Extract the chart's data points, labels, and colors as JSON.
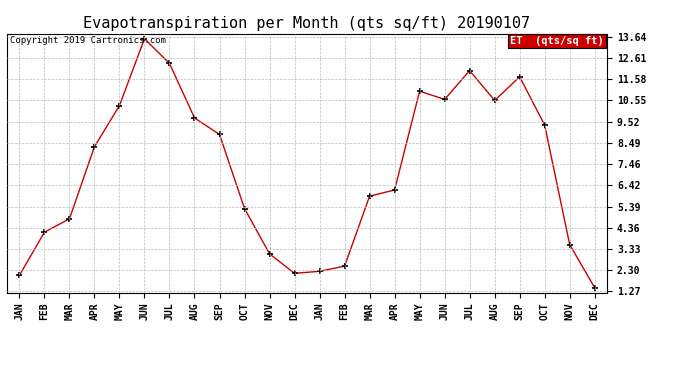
{
  "title": "Evapotranspiration per Month (qts sq/ft) 20190107",
  "copyright": "Copyright 2019 Cartronics.com",
  "legend_label": "ET  (qts/sq ft)",
  "x_labels": [
    "JAN",
    "FEB",
    "MAR",
    "APR",
    "MAY",
    "JUN",
    "JUL",
    "AUG",
    "SEP",
    "OCT",
    "NOV",
    "DEC",
    "JAN",
    "FEB",
    "MAR",
    "APR",
    "MAY",
    "JUN",
    "JUL",
    "AUG",
    "SEP",
    "OCT",
    "NOV",
    "DEC"
  ],
  "y_values": [
    2.05,
    4.15,
    4.8,
    8.3,
    10.3,
    13.55,
    12.35,
    9.7,
    8.9,
    5.3,
    3.1,
    2.15,
    2.25,
    2.5,
    5.9,
    6.2,
    11.0,
    10.6,
    12.0,
    10.55,
    11.7,
    9.35,
    3.55,
    1.45
  ],
  "line_color": "#cc0000",
  "marker_color": "#000000",
  "bg_color": "#ffffff",
  "grid_color": "#bbbbbb",
  "ylim_min": 1.27,
  "ylim_max": 13.64,
  "yticks": [
    1.27,
    2.3,
    3.33,
    4.36,
    5.39,
    6.42,
    7.46,
    8.49,
    9.52,
    10.55,
    11.58,
    12.61,
    13.64
  ],
  "title_fontsize": 11,
  "copyright_fontsize": 6.5,
  "tick_fontsize": 7,
  "legend_bg": "#cc0000",
  "legend_text_color": "#ffffff",
  "legend_fontsize": 7.5
}
